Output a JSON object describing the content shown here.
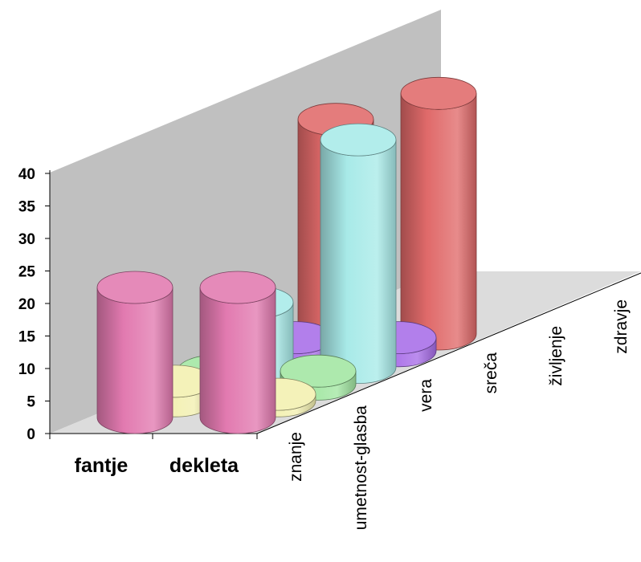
{
  "chart_data": {
    "type": "bar",
    "style": "3d-cylinder",
    "categories": [
      "fantje",
      "dekleta"
    ],
    "series": [
      {
        "name": "zdravje",
        "color": "#e06a6a",
        "values": [
          33,
          37
        ]
      },
      {
        "name": "življenje",
        "color": "#a86de8",
        "values": [
          2,
          2
        ]
      },
      {
        "name": "sreča",
        "color": "#a8eae8",
        "values": [
          10,
          35
        ]
      },
      {
        "name": "vera",
        "color": "#a2e6a2",
        "values": [
          2,
          2
        ]
      },
      {
        "name": "umetnost-glasba",
        "color": "#f2f0b0",
        "values": [
          3,
          1
        ]
      },
      {
        "name": "znanje",
        "color": "#e27ab0",
        "values": [
          20,
          20
        ]
      }
    ],
    "ylim": [
      0,
      40
    ],
    "yticks": [
      "0",
      "5",
      "10",
      "15",
      "20",
      "25",
      "30",
      "35",
      "40"
    ],
    "grid": false
  }
}
